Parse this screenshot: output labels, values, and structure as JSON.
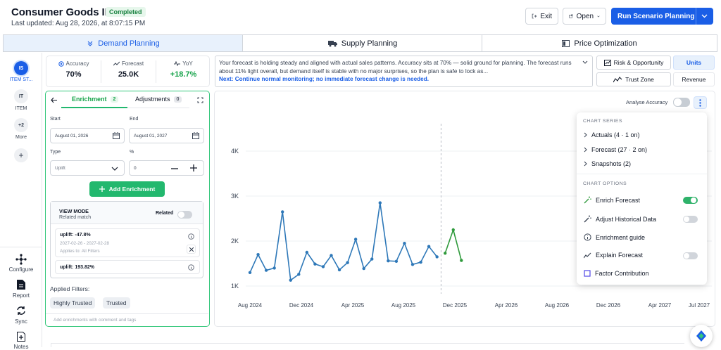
{
  "header": {
    "title": "Consumer Goods IBP",
    "status": "Completed",
    "last_updated": "Last updated: Aug 28, 2026, at 8:07:15 PM",
    "exit_label": "Exit",
    "open_label": "Open",
    "run_label": "Run Scenario Planning"
  },
  "tabs": [
    {
      "label": "Demand Planning",
      "icon": "demand-icon"
    },
    {
      "label": "Supply Planning",
      "icon": "truck-icon"
    },
    {
      "label": "Price Optimization",
      "icon": "price-icon"
    }
  ],
  "rail": {
    "items": [
      {
        "badge": "IS",
        "label": "ITEM ST..."
      },
      {
        "badge": "IT",
        "label": "ITEM"
      },
      {
        "badge": "+2",
        "label": "More"
      }
    ],
    "bottom": [
      {
        "label": "Configure",
        "icon": "configure-icon"
      },
      {
        "label": "Report",
        "icon": "report-icon"
      },
      {
        "label": "Sync",
        "icon": "sync-icon"
      },
      {
        "label": "Notes",
        "icon": "notes-icon"
      }
    ]
  },
  "kpis": [
    {
      "label": "Accuracy",
      "value": "70%"
    },
    {
      "label": "Forecast",
      "value": "25.0K"
    },
    {
      "label": "YoY",
      "value": "+18.7%"
    }
  ],
  "message": {
    "text": "Your forecast is holding steady and aligned with actual sales patterns. Accuracy sits at 70% — solid ground for planning. The forecast runs about 11% light overall, but demand itself is stable with no major surprises, so the plan is safe to lock as...",
    "next": "Next: Continue normal monitoring; no immediate forecast change is needed."
  },
  "options": {
    "risk": "Risk & Opportunity",
    "trust": "Trust Zone",
    "units": "Units",
    "revenue": "Revenue"
  },
  "enrichment": {
    "tab_label": "Enrichment",
    "tab_count": "2",
    "adj_label": "Adjustments",
    "adj_count": "0",
    "start_label": "Start",
    "start_value": "August 01, 2026",
    "end_label": "End",
    "end_value": "August 01, 2027",
    "type_label": "Type",
    "type_value": "Uplift",
    "pct_label": "%",
    "pct_value": "0",
    "add_label": "Add Enrichment",
    "view_mode": "VIEW MODE",
    "related_match": "Related match",
    "related": "Related",
    "items": [
      {
        "title": "uplift: -47.8%",
        "dates": "2027-02-26 - 2027-02-28",
        "applies": "Applies to: All Filters"
      },
      {
        "title": "uplift: 193.82%"
      }
    ],
    "applied_filters": "Applied Filters:",
    "chips": [
      "Highly Trusted",
      "Trusted"
    ],
    "footer": "Add enrichments with comment and tags"
  },
  "chart_controls": {
    "analyse": "Analyse Accuracy"
  },
  "menu": {
    "series_head": "CHART SERIES",
    "series": [
      "Actuals (4 · 1 on)",
      "Forecast (27 · 2 on)",
      "Snapshots (2)"
    ],
    "options_head": "CHART OPTIONS",
    "options": [
      {
        "label": "Enrich Forecast",
        "toggle": true,
        "on": true
      },
      {
        "label": "Adjust Historical Data",
        "toggle": true,
        "on": false
      },
      {
        "label": "Enrichment guide",
        "toggle": false
      },
      {
        "label": "Explain Forecast",
        "toggle": true,
        "on": false
      },
      {
        "label": "Factor Contribution",
        "toggle": false
      }
    ]
  },
  "chart_data": {
    "type": "line",
    "title": "",
    "xlabel": "",
    "ylabel": "",
    "y_ticks": [
      "4K",
      "3K",
      "2K",
      "1K"
    ],
    "x_ticks": [
      "Aug 2024",
      "Dec 2024",
      "Apr 2025",
      "Aug 2025",
      "Dec 2025",
      "Apr 2026",
      "Aug 2026",
      "Dec 2026",
      "Apr 2027",
      "Jul 2027"
    ],
    "ylim": [
      1000,
      4000
    ],
    "series": [
      {
        "color": "#2e78b8",
        "values": [
          1300,
          1700,
          1350,
          1400,
          2650,
          1130,
          1260,
          1750,
          1490,
          1430,
          1680,
          1360,
          1520,
          2040,
          1390,
          1600,
          2850,
          1560,
          1550,
          1950,
          1480,
          1530,
          1880,
          1650
        ]
      },
      {
        "color": "#2f9a3c",
        "values": [
          1730,
          2250,
          1570
        ]
      }
    ],
    "split_index": 23,
    "grid": true,
    "legend": "none"
  }
}
